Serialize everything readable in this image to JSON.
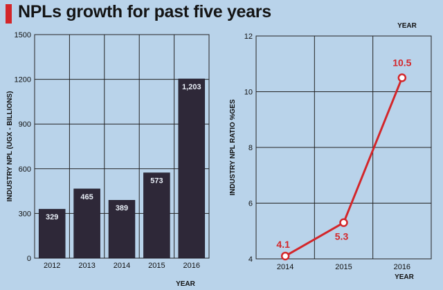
{
  "title": "NPLs growth for past five years",
  "colors": {
    "background": "#b9d3ea",
    "accent": "#d3262a",
    "bar": "#2e2838",
    "line": "#d3262a",
    "grid": "#222222"
  },
  "chart_data": [
    {
      "type": "bar",
      "categories": [
        "2012",
        "2013",
        "2014",
        "2015",
        "2016"
      ],
      "values": [
        329,
        465,
        389,
        573,
        1203
      ],
      "data_labels": [
        "329",
        "465",
        "389",
        "573",
        "1,203"
      ],
      "ylim": [
        0,
        1500
      ],
      "yticks": [
        0,
        300,
        600,
        900,
        1200,
        1500
      ],
      "ylabel": "INDUSTRY NPL (UGX - BILLIONS)",
      "xlabel": "YEAR",
      "grid": true
    },
    {
      "type": "line",
      "x": [
        "2014",
        "2015",
        "2016"
      ],
      "values": [
        4.1,
        5.3,
        10.5
      ],
      "data_labels": [
        "4.1",
        "5.3",
        "10.5"
      ],
      "ylim": [
        4,
        12
      ],
      "yticks": [
        4,
        6,
        8,
        10,
        12
      ],
      "ylabel": "INDUSTRY NPL RATIO %GES",
      "xlabel": "YEAR",
      "xlabel_top": "YEAR",
      "grid": true
    }
  ]
}
